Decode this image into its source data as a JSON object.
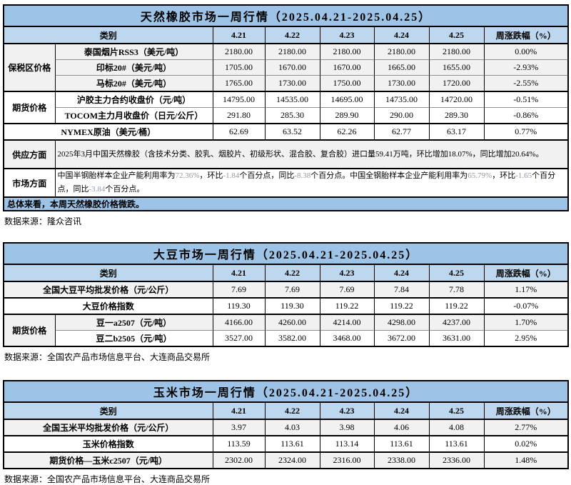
{
  "colors": {
    "title_bg": "#9DC3E6",
    "header_bg": "#BDD7EE",
    "row_alt_bg": "#F1F1F1",
    "summary_bg": "#9DC3E6",
    "muted_number": "#8F9AA6"
  },
  "rubber": {
    "title": "天然橡胶市场一周行情（2025.04.21-2025.04.25）",
    "header": {
      "category": "类别",
      "dates": [
        "4.21",
        "4.22",
        "4.23",
        "4.24",
        "4.25"
      ],
      "change": "周涨跌幅（%）"
    },
    "rows": [
      {
        "group": "保税区价格",
        "label": "泰国烟片RSS3（美元/吨）",
        "values": [
          "2180.00",
          "2180.00",
          "2180.00",
          "2180.00",
          "2180.00"
        ],
        "change": "0.00%"
      },
      {
        "label": "印标20#（美元/吨）",
        "values": [
          "1705.00",
          "1670.00",
          "1670.00",
          "1665.00",
          "1655.00"
        ],
        "change": "-2.93%"
      },
      {
        "label": "马标20#（美元/吨）",
        "values": [
          "1765.00",
          "1730.00",
          "1750.00",
          "1730.00",
          "1720.00"
        ],
        "change": "-2.55%"
      },
      {
        "group": "期货价格",
        "label": "沪胶主力合约收盘价（元/吨）",
        "values": [
          "14795.00",
          "14535.00",
          "14695.00",
          "14735.00",
          "14720.00"
        ],
        "change": "-0.51%"
      },
      {
        "label": "TOCOM主力月收盘价（日元/公斤）",
        "values": [
          "291.80",
          "285.30",
          "289.90",
          "290.00",
          "289.30"
        ],
        "change": "-0.86%"
      },
      {
        "label": "NYMEX原油（美元/桶）",
        "values": [
          "62.69",
          "63.52",
          "62.26",
          "62.77",
          "63.17"
        ],
        "change": "0.77%"
      }
    ],
    "supply": {
      "label": "供应方面",
      "text": "2025年3月中国天然橡胶（含技术分类、胶乳、烟胶片、初级形状、混合胶、复合胶）进口量59.41万吨，环比增加18.07%，同比增加20.64%。"
    },
    "market": {
      "label": "市场方面",
      "segments": [
        {
          "t": "中国半钢胎样本企业产能利用率为",
          "m": false
        },
        {
          "t": "72.36%",
          "m": true
        },
        {
          "t": "，环比",
          "m": false
        },
        {
          "t": "-1.84",
          "m": true
        },
        {
          "t": "个百分点，同比",
          "m": false
        },
        {
          "t": "-8.38",
          "m": true
        },
        {
          "t": "个百分点。中国全钢胎样本企业产能利用率为",
          "m": false
        },
        {
          "t": "65.79%",
          "m": true
        },
        {
          "t": "，环比",
          "m": false
        },
        {
          "t": "-1.65",
          "m": true
        },
        {
          "t": "个百分点，同比",
          "m": false
        },
        {
          "t": "-3.84",
          "m": true
        },
        {
          "t": "个百分点。",
          "m": false
        }
      ]
    },
    "summary": "总体来看，本周天然橡胶价格微跌。",
    "source": "数据来源：隆众咨讯"
  },
  "soybean": {
    "title": "大豆市场一周行情（2025.04.21-2025.04.25）",
    "header": {
      "category": "类别",
      "dates": [
        "4.21",
        "4.22",
        "4.23",
        "4.24",
        "4.25"
      ],
      "change": "周涨跌幅（%）"
    },
    "rows": [
      {
        "label": "全国大豆平均批发价格（元/公斤）",
        "values": [
          "7.69",
          "7.69",
          "7.69",
          "7.84",
          "7.78"
        ],
        "change": "1.17%"
      },
      {
        "label": "大豆价格指数",
        "values": [
          "119.30",
          "119.30",
          "119.22",
          "119.22",
          "119.22"
        ],
        "change": "-0.07%"
      },
      {
        "group": "期货价格",
        "label": "豆一a2507（元/吨）",
        "values": [
          "4166.00",
          "4260.00",
          "4214.00",
          "4298.00",
          "4237.00"
        ],
        "change": "1.70%"
      },
      {
        "label": "豆二b2505（元/吨）",
        "values": [
          "3527.00",
          "3582.00",
          "3468.00",
          "3672.00",
          "3631.00"
        ],
        "change": "2.95%"
      }
    ],
    "source": "数据来源：全国农产品市场信息平台、大连商品交易所"
  },
  "corn": {
    "title": "玉米市场一周行情（2025.04.21-2025.04.25）",
    "header": {
      "category": "类别",
      "dates": [
        "4.21",
        "4.22",
        "4.23",
        "4.24",
        "4.25"
      ],
      "change": "周涨跌幅（%）"
    },
    "rows": [
      {
        "label": "全国玉米平均批发价格（元/公斤）",
        "values": [
          "3.97",
          "4.03",
          "3.98",
          "4.06",
          "4.08"
        ],
        "change": "2.77%"
      },
      {
        "label": "玉米价格指数",
        "values": [
          "113.59",
          "113.61",
          "113.14",
          "113.61",
          "113.61"
        ],
        "change": "0.02%"
      },
      {
        "label": "期货价格—玉米c2507（元/吨）",
        "values": [
          "2302.00",
          "2324.00",
          "2316.00",
          "2338.00",
          "2336.00"
        ],
        "change": "1.48%"
      }
    ],
    "source": "数据来源：全国农产品市场信息平台、大连商品交易所"
  }
}
